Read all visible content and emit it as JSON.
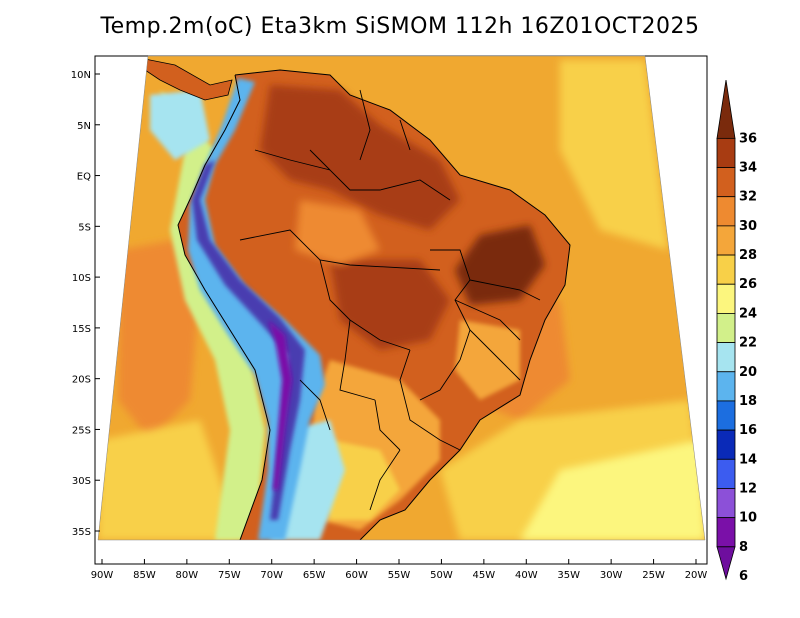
{
  "title": "Temp.2m(oC) Eta3km SiSMOM 112h 16Z01OCT2025",
  "map": {
    "lon_range": [
      -90,
      -20
    ],
    "lat_range": [
      -37,
      11
    ],
    "lat_ticks": [
      "10N",
      "5N",
      "EQ",
      "5S",
      "10S",
      "15S",
      "20S",
      "25S",
      "30S",
      "35S"
    ],
    "lat_values": [
      10,
      5,
      0,
      -5,
      -10,
      -15,
      -20,
      -25,
      -30,
      -35
    ],
    "lon_ticks": [
      "90W",
      "85W",
      "80W",
      "75W",
      "70W",
      "65W",
      "60W",
      "55W",
      "50W",
      "45W",
      "40W",
      "35W",
      "30W",
      "25W",
      "20W"
    ],
    "lon_values": [
      -90,
      -85,
      -80,
      -75,
      -70,
      -65,
      -60,
      -55,
      -50,
      -45,
      -40,
      -35,
      -30,
      -25,
      -20
    ],
    "ocean_color": "#f0a830",
    "land_hot_color": "#d2601e",
    "land_very_hot_color": "#a83c12",
    "andes_cold_color": "#4a3cb0"
  },
  "colorbar": {
    "labels": [
      "36",
      "34",
      "32",
      "30",
      "28",
      "26",
      "24",
      "22",
      "20",
      "18",
      "16",
      "14",
      "12",
      "10",
      "8",
      "6"
    ],
    "colors": [
      "#7a2a0c",
      "#a83c12",
      "#d2601e",
      "#ee8a30",
      "#f4a63a",
      "#f8d048",
      "#fcf67e",
      "#d2f08a",
      "#a6e4f0",
      "#5cb4ee",
      "#1c6ee0",
      "#0a2ab8",
      "#3c5cf0",
      "#8c50d8",
      "#7a10a8",
      "#6e0e9e"
    ]
  }
}
